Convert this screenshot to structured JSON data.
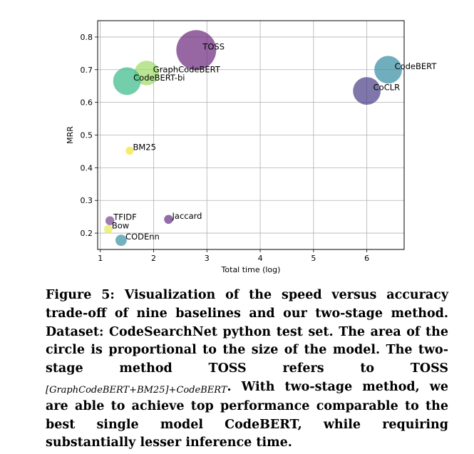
{
  "chart_data": {
    "type": "scatter",
    "xlabel": "Total time (log)",
    "ylabel": "MRR",
    "xlim": [
      0.95,
      6.7
    ],
    "ylim": [
      0.15,
      0.85
    ],
    "xticks": [
      1,
      2,
      3,
      4,
      5,
      6
    ],
    "yticks": [
      0.2,
      0.3,
      0.4,
      0.5,
      0.6,
      0.7,
      0.8
    ],
    "grid": true,
    "points": [
      {
        "label": "TOSS",
        "x": 2.8,
        "y": 0.76,
        "size": 1.0,
        "color": "#6f2c81"
      },
      {
        "label": "CodeBERT",
        "x": 6.4,
        "y": 0.7,
        "size": 0.48,
        "color": "#3a8fa3"
      },
      {
        "label": "CoCLR",
        "x": 6.0,
        "y": 0.635,
        "size": 0.48,
        "color": "#4e4189"
      },
      {
        "label": "GraphCodeBERT",
        "x": 1.87,
        "y": 0.69,
        "size": 0.38,
        "color": "#9fdc6a"
      },
      {
        "label": "CodeBERT-bi",
        "x": 1.5,
        "y": 0.665,
        "size": 0.48,
        "color": "#3dbb8c"
      },
      {
        "label": "BM25",
        "x": 1.55,
        "y": 0.452,
        "size": 0.04,
        "color": "#f1e532"
      },
      {
        "label": "Jaccard",
        "x": 2.28,
        "y": 0.242,
        "size": 0.05,
        "color": "#6a3588"
      },
      {
        "label": "TFIDF",
        "x": 1.18,
        "y": 0.238,
        "size": 0.05,
        "color": "#7a4a92"
      },
      {
        "label": "Bow",
        "x": 1.15,
        "y": 0.212,
        "size": 0.045,
        "color": "#e6ea55"
      },
      {
        "label": "CODEnn",
        "x": 1.39,
        "y": 0.178,
        "size": 0.08,
        "color": "#3d93a8"
      }
    ]
  },
  "caption": {
    "main": "Figure 5: Visualization of the speed versus accuracy trade-off of nine baselines and our two-stage method. Dataset: CodeSearchNet python test set. The area of the circle is proportional to the size of the model. The two-stage method TOSS refers to TOSS ",
    "subscript": "[GraphCodeBERT+BM25]+CodeBERT",
    "tail": ". With two-stage method, we are able to achieve top performance comparable to the best single model CodeBERT, while requiring substantially lesser inference time."
  }
}
